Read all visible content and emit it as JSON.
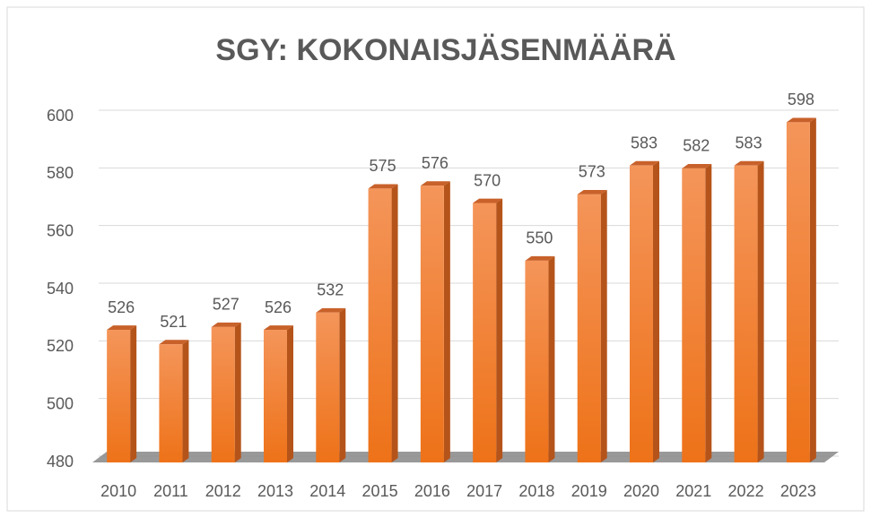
{
  "chart_data": {
    "type": "bar",
    "title": "SGY: KOKONAISJÄSENMÄÄRÄ",
    "categories": [
      "2010",
      "2011",
      "2012",
      "2013",
      "2014",
      "2015",
      "2016",
      "2017",
      "2018",
      "2019",
      "2020",
      "2021",
      "2022",
      "2023"
    ],
    "values": [
      526,
      521,
      527,
      526,
      532,
      575,
      576,
      570,
      550,
      573,
      583,
      582,
      583,
      598
    ],
    "color": "#f07a22",
    "ylim": [
      480,
      600
    ],
    "yticks": [
      480,
      500,
      520,
      540,
      560,
      580,
      600
    ],
    "grid": true
  }
}
